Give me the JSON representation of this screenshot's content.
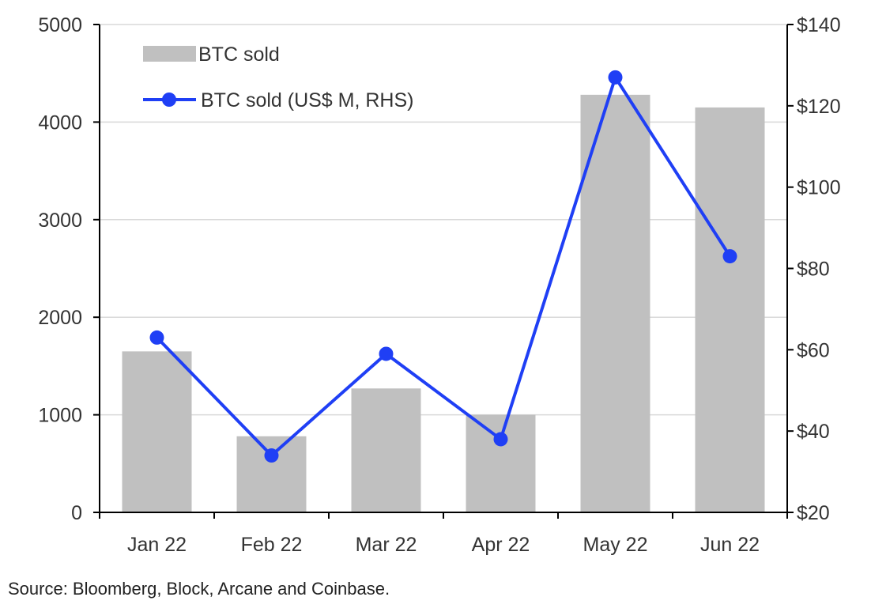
{
  "chart_data": {
    "type": "bar",
    "categories": [
      "Jan 22",
      "Feb 22",
      "Mar 22",
      "Apr 22",
      "May 22",
      "Jun 22"
    ],
    "series": [
      {
        "name": "BTC sold",
        "type": "bar",
        "axis": "left",
        "values": [
          1650,
          780,
          1270,
          1000,
          4280,
          4150
        ],
        "color": "#c0c0c0"
      },
      {
        "name": "BTC sold (US$ M, RHS)",
        "type": "line",
        "axis": "right",
        "values": [
          63,
          34,
          59,
          38,
          127,
          83
        ],
        "color": "#1f3ff5"
      }
    ],
    "y_left": {
      "min": 0,
      "max": 5000,
      "ticks": [
        0,
        1000,
        2000,
        3000,
        4000,
        5000
      ],
      "tick_labels": [
        "0",
        "1000",
        "2000",
        "3000",
        "4000",
        "5000"
      ]
    },
    "y_right": {
      "min": 20,
      "max": 140,
      "ticks": [
        20,
        40,
        60,
        80,
        100,
        120,
        140
      ],
      "tick_labels": [
        "$20",
        "$40",
        "$60",
        "$80",
        "$100",
        "$120",
        "$140"
      ]
    },
    "grid": true,
    "legend_position": "top-left"
  },
  "source": "Source: Bloomberg, Block, Arcane and Coinbase."
}
